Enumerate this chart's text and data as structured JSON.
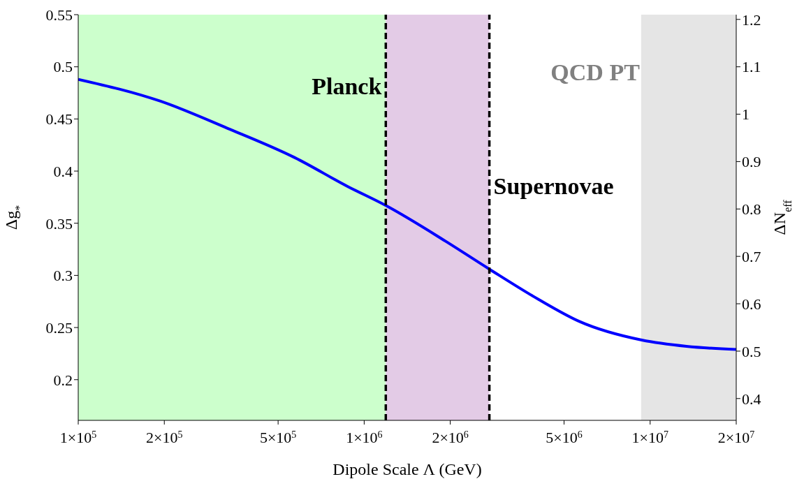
{
  "chart_data": {
    "type": "line",
    "xlabel": "Dipole Scale Λ (GeV)",
    "ylabel": "Δg$_{*}$",
    "y2label": "ΔN$_{eff}$",
    "x": [
      100000,
      194000,
      333000,
      571000,
      879000,
      1190000,
      1920000,
      2740000,
      4070000,
      5640000,
      9350000,
      13400000,
      20000000
    ],
    "series": [
      {
        "color": "#0000ff",
        "values": [
          0.488,
          0.467,
          0.441,
          0.413,
          0.385,
          0.367,
          0.333,
          0.306,
          0.277,
          0.256,
          0.238,
          0.232,
          0.229
        ]
      }
    ],
    "xlim": [
      100000,
      20000000
    ],
    "xticks": [
      {
        "value": 100000,
        "label": "1×10$^{5}$"
      },
      {
        "value": 200000,
        "label": "2×10$^{5}$"
      },
      {
        "value": 500000,
        "label": "5×10$^{5}$"
      },
      {
        "value": 1000000,
        "label": "1×10$^{6}$"
      },
      {
        "value": 2000000,
        "label": "2×10$^{6}$"
      },
      {
        "value": 5000000,
        "label": "5×10$^{6}$"
      },
      {
        "value": 10000000,
        "label": "1×10$^{7}$"
      },
      {
        "value": 20000000,
        "label": "2×10$^{7}$"
      }
    ],
    "ylim": [
      0.161,
      0.55
    ],
    "yticks": [
      0.2,
      0.25,
      0.3,
      0.35,
      0.4,
      0.45,
      0.5,
      0.55
    ],
    "y2lim": [
      0.354,
      1.21
    ],
    "y2ticks": [
      0.4,
      0.5,
      0.6,
      0.7,
      0.8,
      0.9,
      1,
      1.1,
      1.2
    ],
    "log": "x",
    "bands": [
      {
        "axis": "x",
        "from": 100000,
        "to": 1190000,
        "color": "#ccffcc"
      },
      {
        "axis": "x",
        "from": 1190000,
        "to": 2740000,
        "color": "#e3cbe6"
      },
      {
        "axis": "x",
        "from": 9300000,
        "to": 20000000,
        "color": "#e5e5e5",
        "label": "QCD PT"
      }
    ],
    "ref_lines": [
      {
        "axis": "x",
        "value": 1190000,
        "label": "Planck",
        "color": "#000000",
        "line_style": "dashed"
      },
      {
        "axis": "x",
        "value": 2740000,
        "label": "Supernovae",
        "color": "#000000",
        "line_style": "dashed"
      }
    ]
  }
}
